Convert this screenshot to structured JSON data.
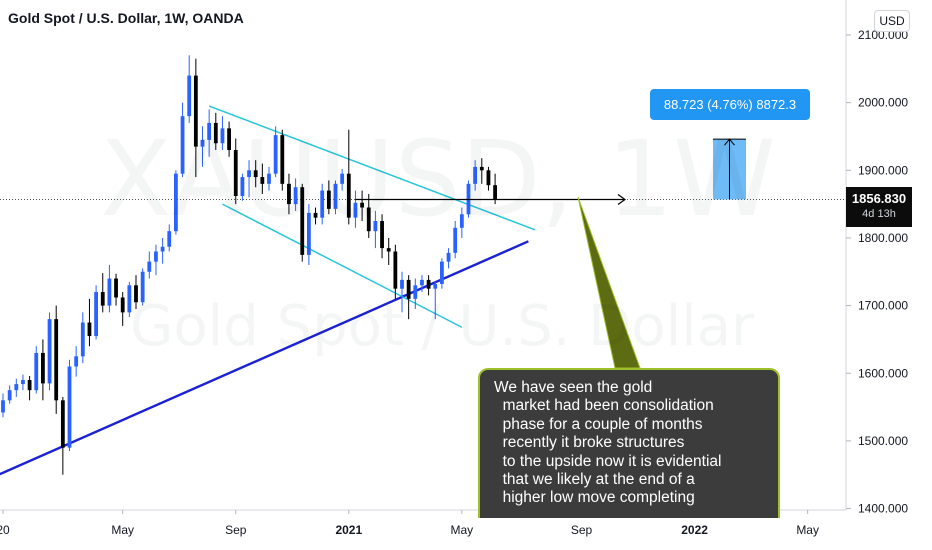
{
  "header": {
    "title": "Gold Spot / U.S. Dollar, 1W, OANDA",
    "currency_button": "USD"
  },
  "watermark": {
    "symbol": "XAUUSD, 1W",
    "description": "Gold Spot / U.S. Dollar"
  },
  "price_axis": {
    "last_price": "1856.830",
    "countdown": "4d 13h",
    "last_price_bg": "#0c0c0c"
  },
  "measure_tool": {
    "label": "88.723 (4.76%) 8872.3",
    "color": "#2196f3"
  },
  "callout": {
    "lines": [
      "We have seen the gold",
      "  market had been consolidation",
      "  phase for a couple of months",
      "  recently it broke structures",
      "  to the upside now it is evidential",
      "  that we likely at the end of a",
      "  higher low move completing"
    ],
    "bg": "#3c3c3c",
    "border": "#9ec02d",
    "pointer_fill": "#5d6b12"
  },
  "colors": {
    "up": "#2962ff",
    "down": "#000000",
    "trendline": "#1a21d6",
    "channel": "#26c6da"
  },
  "chart_data": {
    "type": "candlestick",
    "symbol": "XAUUSD",
    "timeframe": "1W",
    "y_range": [
      1375,
      2175
    ],
    "y_ticks": [
      "2100.000",
      "2000.000",
      "1900.000",
      "1800.000",
      "1700.000",
      "1600.000",
      "1500.000",
      "1400.000"
    ],
    "y_tick_values": [
      2100,
      2000,
      1900,
      1800,
      1700,
      1600,
      1500,
      1400
    ],
    "x_ticks": [
      "20",
      "May",
      "Sep",
      "2021",
      "May",
      "Sep",
      "2022",
      "May"
    ],
    "x_tick_bold": [
      false,
      false,
      false,
      true,
      false,
      false,
      true,
      false
    ],
    "x_tick_index": [
      0,
      18,
      35,
      52,
      69,
      87,
      104,
      121
    ],
    "candles": [
      [
        1542,
        1570,
        1535,
        1560
      ],
      [
        1560,
        1582,
        1555,
        1575
      ],
      [
        1575,
        1592,
        1565,
        1584
      ],
      [
        1584,
        1598,
        1575,
        1590
      ],
      [
        1590,
        1596,
        1560,
        1575
      ],
      [
        1575,
        1640,
        1570,
        1630
      ],
      [
        1630,
        1650,
        1560,
        1585
      ],
      [
        1585,
        1690,
        1575,
        1680
      ],
      [
        1680,
        1700,
        1540,
        1560
      ],
      [
        1560,
        1565,
        1450,
        1490
      ],
      [
        1490,
        1620,
        1485,
        1610
      ],
      [
        1610,
        1640,
        1595,
        1625
      ],
      [
        1625,
        1690,
        1615,
        1675
      ],
      [
        1675,
        1710,
        1640,
        1655
      ],
      [
        1655,
        1730,
        1650,
        1720
      ],
      [
        1720,
        1748,
        1690,
        1700
      ],
      [
        1700,
        1760,
        1690,
        1740
      ],
      [
        1740,
        1747,
        1700,
        1712
      ],
      [
        1712,
        1720,
        1670,
        1690
      ],
      [
        1690,
        1735,
        1683,
        1730
      ],
      [
        1730,
        1745,
        1695,
        1705
      ],
      [
        1705,
        1755,
        1700,
        1750
      ],
      [
        1750,
        1780,
        1740,
        1765
      ],
      [
        1765,
        1790,
        1745,
        1780
      ],
      [
        1780,
        1800,
        1762,
        1787
      ],
      [
        1787,
        1820,
        1780,
        1810
      ],
      [
        1810,
        1900,
        1805,
        1895
      ],
      [
        1895,
        2000,
        1890,
        1980
      ],
      [
        1980,
        2070,
        1970,
        2040
      ],
      [
        2040,
        2065,
        1890,
        1935
      ],
      [
        1935,
        1965,
        1905,
        1945
      ],
      [
        1945,
        1990,
        1920,
        1970
      ],
      [
        1970,
        1985,
        1930,
        1940
      ],
      [
        1940,
        1980,
        1930,
        1962
      ],
      [
        1962,
        1972,
        1920,
        1930
      ],
      [
        1930,
        1947,
        1850,
        1862
      ],
      [
        1862,
        1895,
        1855,
        1890
      ],
      [
        1890,
        1915,
        1860,
        1900
      ],
      [
        1900,
        1915,
        1875,
        1890
      ],
      [
        1890,
        1910,
        1865,
        1880
      ],
      [
        1880,
        1905,
        1870,
        1895
      ],
      [
        1895,
        1965,
        1890,
        1952
      ],
      [
        1952,
        1960,
        1870,
        1880
      ],
      [
        1880,
        1895,
        1835,
        1850
      ],
      [
        1850,
        1888,
        1840,
        1875
      ],
      [
        1875,
        1880,
        1765,
        1775
      ],
      [
        1775,
        1850,
        1760,
        1837
      ],
      [
        1837,
        1845,
        1820,
        1830
      ],
      [
        1830,
        1880,
        1820,
        1870
      ],
      [
        1870,
        1885,
        1835,
        1843
      ],
      [
        1843,
        1885,
        1835,
        1880
      ],
      [
        1880,
        1902,
        1870,
        1895
      ],
      [
        1895,
        1960,
        1820,
        1830
      ],
      [
        1830,
        1870,
        1815,
        1852
      ],
      [
        1852,
        1870,
        1825,
        1845
      ],
      [
        1845,
        1865,
        1800,
        1810
      ],
      [
        1810,
        1840,
        1785,
        1825
      ],
      [
        1825,
        1835,
        1770,
        1785
      ],
      [
        1785,
        1800,
        1760,
        1780
      ],
      [
        1780,
        1790,
        1710,
        1725
      ],
      [
        1725,
        1750,
        1690,
        1738
      ],
      [
        1738,
        1745,
        1680,
        1710
      ],
      [
        1710,
        1740,
        1695,
        1730
      ],
      [
        1730,
        1745,
        1720,
        1738
      ],
      [
        1738,
        1745,
        1715,
        1725
      ],
      [
        1725,
        1735,
        1680,
        1732
      ],
      [
        1732,
        1770,
        1725,
        1765
      ],
      [
        1765,
        1785,
        1755,
        1778
      ],
      [
        1778,
        1825,
        1770,
        1815
      ],
      [
        1815,
        1845,
        1800,
        1835
      ],
      [
        1835,
        1885,
        1830,
        1880
      ],
      [
        1880,
        1915,
        1870,
        1905
      ],
      [
        1905,
        1918,
        1880,
        1900
      ],
      [
        1900,
        1905,
        1870,
        1878
      ],
      [
        1878,
        1895,
        1850,
        1857
      ]
    ],
    "horizontal_level": 1856.83,
    "trendline": {
      "from": [
        -3,
        1440
      ],
      "to": [
        79,
        1795
      ]
    },
    "channel": {
      "upper": {
        "from": [
          31,
          1995
        ],
        "to": [
          80,
          1812
        ]
      },
      "lower": {
        "from": [
          33,
          1850
        ],
        "to": [
          69,
          1668
        ]
      }
    },
    "measurement": {
      "from": 1857,
      "to": 1946
    }
  }
}
